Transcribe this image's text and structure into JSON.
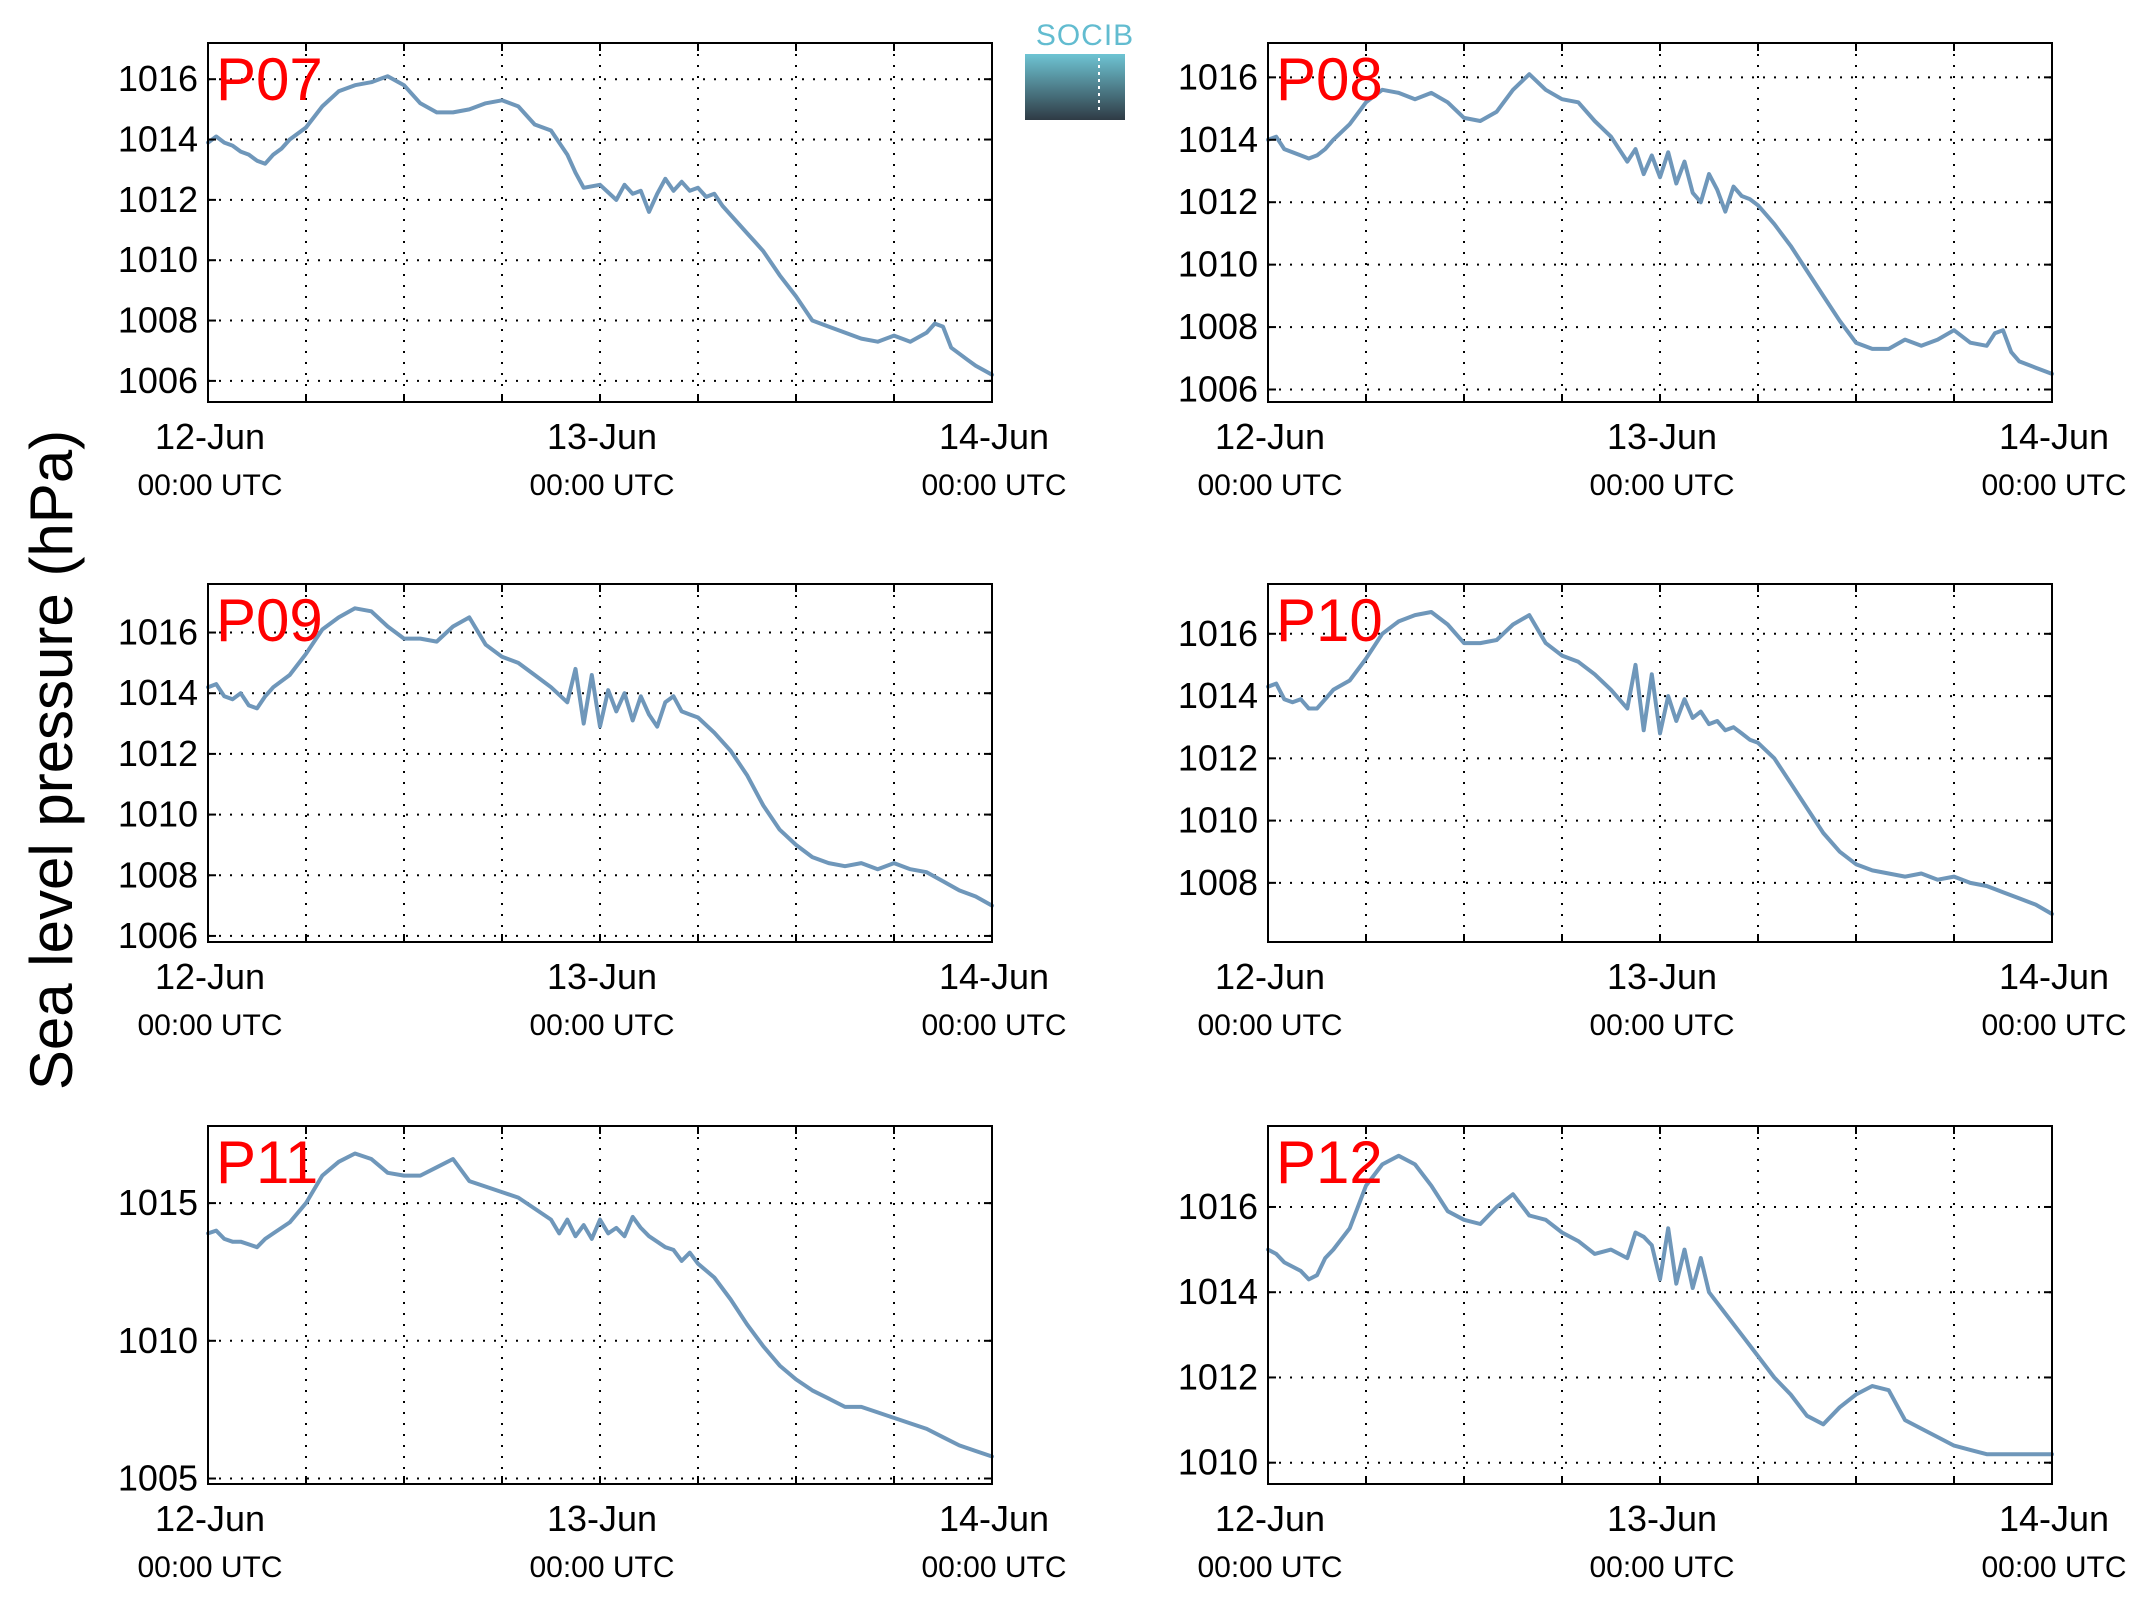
{
  "figure": {
    "ylabel": "Sea level pressure (hPa)",
    "logo_text": "SOCIB",
    "colors": {
      "line": "#6f97ba",
      "title": "#ff0000",
      "axis": "#000000",
      "logo_top": "#6ec4d3",
      "logo_bottom": "#2f3b45",
      "logo_text": "#62bcd0"
    }
  },
  "chart_data": [
    {
      "type": "line",
      "title": "P07",
      "xticks": [
        {
          "line1": "12-Jun",
          "line2": "00:00 UTC"
        },
        {
          "line1": "13-Jun",
          "line2": "00:00 UTC"
        },
        {
          "line1": "14-Jun",
          "line2": "00:00 UTC"
        }
      ],
      "xlim": [
        0,
        48
      ],
      "ylim": [
        1005.3,
        1017.2
      ],
      "yticks": [
        1006,
        1008,
        1010,
        1012,
        1014,
        1016
      ],
      "grid": true,
      "x": [
        0,
        0.5,
        1,
        1.5,
        2,
        2.5,
        3,
        3.5,
        4,
        4.5,
        5,
        6,
        7,
        8,
        9,
        10,
        11,
        12,
        13,
        14,
        15,
        16,
        17,
        18,
        19,
        20,
        21,
        22,
        22.5,
        23,
        24,
        25,
        25.5,
        26,
        26.5,
        27,
        27.5,
        28,
        28.5,
        29,
        29.5,
        30,
        30.5,
        31,
        31.5,
        32,
        32.5,
        33,
        33.5,
        34,
        35,
        36,
        37,
        38,
        39,
        40,
        41,
        42,
        43,
        44,
        44.5,
        45,
        45.5,
        46,
        46.5,
        47,
        48
      ],
      "y": [
        1013.9,
        1014.1,
        1013.9,
        1013.8,
        1013.6,
        1013.5,
        1013.3,
        1013.2,
        1013.5,
        1013.7,
        1014.0,
        1014.4,
        1015.1,
        1015.6,
        1015.8,
        1015.9,
        1016.1,
        1015.8,
        1015.2,
        1014.9,
        1014.9,
        1015.0,
        1015.2,
        1015.3,
        1015.1,
        1014.5,
        1014.3,
        1013.5,
        1012.9,
        1012.4,
        1012.5,
        1012.0,
        1012.5,
        1012.2,
        1012.3,
        1011.6,
        1012.2,
        1012.7,
        1012.3,
        1012.6,
        1012.3,
        1012.4,
        1012.1,
        1012.2,
        1011.8,
        1011.5,
        1011.2,
        1010.9,
        1010.6,
        1010.3,
        1009.5,
        1008.8,
        1008.0,
        1007.8,
        1007.6,
        1007.4,
        1007.3,
        1007.5,
        1007.3,
        1007.6,
        1007.9,
        1007.8,
        1007.1,
        1006.9,
        1006.7,
        1006.5,
        1006.2
      ]
    },
    {
      "type": "line",
      "title": "P08",
      "xticks": [
        {
          "line1": "12-Jun",
          "line2": "00:00 UTC"
        },
        {
          "line1": "13-Jun",
          "line2": "00:00 UTC"
        },
        {
          "line1": "14-Jun",
          "line2": "00:00 UTC"
        }
      ],
      "xlim": [
        0,
        48
      ],
      "ylim": [
        1005.6,
        1017.1
      ],
      "yticks": [
        1006,
        1008,
        1010,
        1012,
        1014,
        1016
      ],
      "grid": true,
      "x": [
        0,
        0.5,
        1,
        1.5,
        2,
        2.5,
        3,
        3.5,
        4,
        5,
        6,
        7,
        8,
        9,
        10,
        11,
        12,
        13,
        14,
        15,
        16,
        17,
        18,
        19,
        20,
        21,
        22,
        22.5,
        23,
        23.5,
        24,
        24.5,
        25,
        25.5,
        26,
        26.5,
        27,
        27.5,
        28,
        28.5,
        29,
        29.5,
        30,
        30.5,
        31,
        32,
        33,
        34,
        35,
        36,
        37,
        38,
        39,
        40,
        41,
        42,
        43,
        44,
        44.5,
        45,
        45.5,
        46,
        47,
        48
      ],
      "y": [
        1014.0,
        1014.1,
        1013.7,
        1013.6,
        1013.5,
        1013.4,
        1013.5,
        1013.7,
        1014.0,
        1014.5,
        1015.2,
        1015.6,
        1015.5,
        1015.3,
        1015.5,
        1015.2,
        1014.7,
        1014.6,
        1014.9,
        1015.6,
        1016.1,
        1015.6,
        1015.3,
        1015.2,
        1014.6,
        1014.1,
        1013.3,
        1013.7,
        1012.9,
        1013.5,
        1012.8,
        1013.6,
        1012.6,
        1013.3,
        1012.3,
        1012.0,
        1012.9,
        1012.4,
        1011.7,
        1012.5,
        1012.2,
        1012.1,
        1011.9,
        1011.6,
        1011.3,
        1010.6,
        1009.8,
        1009.0,
        1008.2,
        1007.5,
        1007.3,
        1007.3,
        1007.6,
        1007.4,
        1007.6,
        1007.9,
        1007.5,
        1007.4,
        1007.8,
        1007.9,
        1007.2,
        1006.9,
        1006.7,
        1006.5
      ]
    },
    {
      "type": "line",
      "title": "P09",
      "xticks": [
        {
          "line1": "12-Jun",
          "line2": "00:00 UTC"
        },
        {
          "line1": "13-Jun",
          "line2": "00:00 UTC"
        },
        {
          "line1": "14-Jun",
          "line2": "00:00 UTC"
        }
      ],
      "xlim": [
        0,
        48
      ],
      "ylim": [
        1005.8,
        1017.6
      ],
      "yticks": [
        1006,
        1008,
        1010,
        1012,
        1014,
        1016
      ],
      "grid": true,
      "x": [
        0,
        0.5,
        1,
        1.5,
        2,
        2.5,
        3,
        3.5,
        4,
        5,
        6,
        7,
        8,
        9,
        10,
        11,
        12,
        13,
        14,
        15,
        16,
        17,
        18,
        19,
        20,
        21,
        22,
        22.5,
        23,
        23.5,
        24,
        24.5,
        25,
        25.5,
        26,
        26.5,
        27,
        27.5,
        28,
        28.5,
        29,
        29.5,
        30,
        31,
        32,
        33,
        34,
        35,
        36,
        37,
        38,
        39,
        40,
        41,
        42,
        43,
        44,
        45,
        46,
        47,
        48
      ],
      "y": [
        1014.2,
        1014.3,
        1013.9,
        1013.8,
        1014.0,
        1013.6,
        1013.5,
        1013.9,
        1014.2,
        1014.6,
        1015.3,
        1016.1,
        1016.5,
        1016.8,
        1016.7,
        1016.2,
        1015.8,
        1015.8,
        1015.7,
        1016.2,
        1016.5,
        1015.6,
        1015.2,
        1015.0,
        1014.6,
        1014.2,
        1013.7,
        1014.8,
        1013.0,
        1014.6,
        1012.9,
        1014.1,
        1013.4,
        1014.0,
        1013.1,
        1013.9,
        1013.3,
        1012.9,
        1013.7,
        1013.9,
        1013.4,
        1013.3,
        1013.2,
        1012.7,
        1012.1,
        1011.3,
        1010.3,
        1009.5,
        1009.0,
        1008.6,
        1008.4,
        1008.3,
        1008.4,
        1008.2,
        1008.4,
        1008.2,
        1008.1,
        1007.8,
        1007.5,
        1007.3,
        1007.0
      ]
    },
    {
      "type": "line",
      "title": "P10",
      "xticks": [
        {
          "line1": "12-Jun",
          "line2": "00:00 UTC"
        },
        {
          "line1": "13-Jun",
          "line2": "00:00 UTC"
        },
        {
          "line1": "14-Jun",
          "line2": "00:00 UTC"
        }
      ],
      "xlim": [
        0,
        48
      ],
      "ylim": [
        1006.1,
        1017.6
      ],
      "yticks": [
        1008,
        1010,
        1012,
        1014,
        1016
      ],
      "grid": true,
      "x": [
        0,
        0.5,
        1,
        1.5,
        2,
        2.5,
        3,
        3.5,
        4,
        5,
        6,
        7,
        8,
        9,
        10,
        11,
        12,
        13,
        14,
        15,
        16,
        17,
        18,
        19,
        20,
        21,
        22,
        22.5,
        23,
        23.5,
        24,
        24.5,
        25,
        25.5,
        26,
        26.5,
        27,
        27.5,
        28,
        28.5,
        29,
        29.5,
        30,
        31,
        32,
        33,
        34,
        35,
        36,
        37,
        38,
        39,
        40,
        41,
        42,
        43,
        44,
        45,
        46,
        47,
        48
      ],
      "y": [
        1014.3,
        1014.4,
        1013.9,
        1013.8,
        1013.9,
        1013.6,
        1013.6,
        1013.9,
        1014.2,
        1014.5,
        1015.2,
        1016.0,
        1016.4,
        1016.6,
        1016.7,
        1016.3,
        1015.7,
        1015.7,
        1015.8,
        1016.3,
        1016.6,
        1015.7,
        1015.3,
        1015.1,
        1014.7,
        1014.2,
        1013.6,
        1015.0,
        1012.9,
        1014.7,
        1012.8,
        1014.0,
        1013.2,
        1013.9,
        1013.3,
        1013.5,
        1013.1,
        1013.2,
        1012.9,
        1013.0,
        1012.8,
        1012.6,
        1012.5,
        1012.0,
        1011.2,
        1010.4,
        1009.6,
        1009.0,
        1008.6,
        1008.4,
        1008.3,
        1008.2,
        1008.3,
        1008.1,
        1008.2,
        1008.0,
        1007.9,
        1007.7,
        1007.5,
        1007.3,
        1007.0
      ]
    },
    {
      "type": "line",
      "title": "P11",
      "xticks": [
        {
          "line1": "12-Jun",
          "line2": "00:00 UTC"
        },
        {
          "line1": "13-Jun",
          "line2": "00:00 UTC"
        },
        {
          "line1": "14-Jun",
          "line2": "00:00 UTC"
        }
      ],
      "xlim": [
        0,
        48
      ],
      "ylim": [
        1004.8,
        1017.8
      ],
      "yticks": [
        1005,
        1010,
        1015
      ],
      "grid": true,
      "x": [
        0,
        0.5,
        1,
        1.5,
        2,
        2.5,
        3,
        3.5,
        4,
        5,
        6,
        7,
        8,
        9,
        10,
        11,
        12,
        13,
        14,
        15,
        16,
        17,
        18,
        19,
        20,
        21,
        21.5,
        22,
        22.5,
        23,
        23.5,
        24,
        24.5,
        25,
        25.5,
        26,
        26.5,
        27,
        27.5,
        28,
        28.5,
        29,
        29.5,
        30,
        31,
        32,
        33,
        34,
        35,
        36,
        37,
        38,
        39,
        40,
        41,
        42,
        43,
        44,
        45,
        46,
        47,
        48
      ],
      "y": [
        1013.9,
        1014.0,
        1013.7,
        1013.6,
        1013.6,
        1013.5,
        1013.4,
        1013.7,
        1013.9,
        1014.3,
        1015.0,
        1016.0,
        1016.5,
        1016.8,
        1016.6,
        1016.1,
        1016.0,
        1016.0,
        1016.3,
        1016.6,
        1015.8,
        1015.6,
        1015.4,
        1015.2,
        1014.8,
        1014.4,
        1013.9,
        1014.4,
        1013.8,
        1014.2,
        1013.7,
        1014.4,
        1013.9,
        1014.1,
        1013.8,
        1014.5,
        1014.1,
        1013.8,
        1013.6,
        1013.4,
        1013.3,
        1012.9,
        1013.2,
        1012.8,
        1012.3,
        1011.5,
        1010.6,
        1009.8,
        1009.1,
        1008.6,
        1008.2,
        1007.9,
        1007.6,
        1007.6,
        1007.4,
        1007.2,
        1007.0,
        1006.8,
        1006.5,
        1006.2,
        1006.0,
        1005.8
      ]
    },
    {
      "type": "line",
      "title": "P12",
      "xticks": [
        {
          "line1": "12-Jun",
          "line2": "00:00 UTC"
        },
        {
          "line1": "13-Jun",
          "line2": "00:00 UTC"
        },
        {
          "line1": "14-Jun",
          "line2": "00:00 UTC"
        }
      ],
      "xlim": [
        0,
        48
      ],
      "ylim": [
        1009.5,
        1017.9
      ],
      "yticks": [
        1010,
        1012,
        1014,
        1016
      ],
      "grid": true,
      "x": [
        0,
        0.5,
        1,
        1.5,
        2,
        2.5,
        3,
        3.5,
        4,
        5,
        6,
        7,
        8,
        9,
        10,
        11,
        12,
        13,
        14,
        15,
        16,
        17,
        18,
        19,
        20,
        21,
        22,
        22.5,
        23,
        23.5,
        24,
        24.5,
        25,
        25.5,
        26,
        26.5,
        27,
        28,
        29,
        30,
        31,
        32,
        33,
        34,
        35,
        36,
        37,
        38,
        39,
        40,
        41,
        42,
        43,
        44,
        45,
        46,
        47,
        48
      ],
      "y": [
        1015.0,
        1014.9,
        1014.7,
        1014.6,
        1014.5,
        1014.3,
        1014.4,
        1014.8,
        1015.0,
        1015.5,
        1016.5,
        1017.0,
        1017.2,
        1017.0,
        1016.5,
        1015.9,
        1015.7,
        1015.6,
        1016.0,
        1016.3,
        1015.8,
        1015.7,
        1015.4,
        1015.2,
        1014.9,
        1015.0,
        1014.8,
        1015.4,
        1015.3,
        1015.1,
        1014.3,
        1015.5,
        1014.2,
        1015.0,
        1014.1,
        1014.8,
        1014.0,
        1013.5,
        1013.0,
        1012.5,
        1012.0,
        1011.6,
        1011.1,
        1010.9,
        1011.3,
        1011.6,
        1011.8,
        1011.7,
        1011.0,
        1010.8,
        1010.6,
        1010.4,
        1010.3,
        1010.2,
        1010.2,
        1010.2,
        1010.2,
        1010.2
      ]
    }
  ]
}
